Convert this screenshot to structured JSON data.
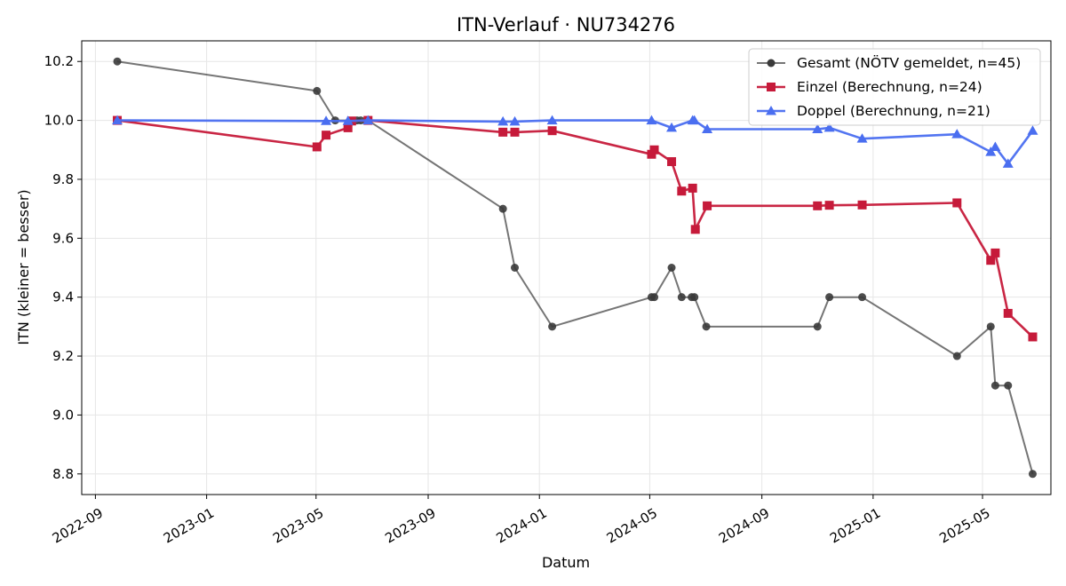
{
  "chart_data": {
    "type": "line",
    "title": "ITN-Verlauf · NU734276",
    "xlabel": "Datum",
    "ylabel": "ITN  (kleiner = besser)",
    "x_ticks": [
      "2022-09",
      "2023-01",
      "2023-05",
      "2023-09",
      "2024-01",
      "2024-05",
      "2024-09",
      "2025-01",
      "2025-05"
    ],
    "y_ticks": [
      8.8,
      9.0,
      9.2,
      9.4,
      9.6,
      9.8,
      10.0,
      10.2
    ],
    "xlim": [
      "2022-08-17",
      "2025-07-15"
    ],
    "ylim": [
      8.73,
      10.27
    ],
    "grid": true,
    "legend_position": "top-right",
    "series": [
      {
        "name": "Gesamt (NÖTV gemeldet, n=45)",
        "color": "#3a3a3a",
        "marker": "circle",
        "points": [
          [
            "2022-09-25",
            10.2
          ],
          [
            "2023-05-02",
            10.1
          ],
          [
            "2023-05-22",
            10.0
          ],
          [
            "2023-06-15",
            10.0
          ],
          [
            "2023-06-19",
            10.0
          ],
          [
            "2023-06-27",
            10.0
          ],
          [
            "2023-11-22",
            9.7
          ],
          [
            "2023-12-05",
            9.5
          ],
          [
            "2024-01-15",
            9.3
          ],
          [
            "2024-05-03",
            9.4
          ],
          [
            "2024-05-06",
            9.4
          ],
          [
            "2024-05-25",
            9.5
          ],
          [
            "2024-06-05",
            9.4
          ],
          [
            "2024-06-16",
            9.4
          ],
          [
            "2024-06-19",
            9.4
          ],
          [
            "2024-07-02",
            9.3
          ],
          [
            "2024-11-01",
            9.3
          ],
          [
            "2024-11-14",
            9.4
          ],
          [
            "2024-12-20",
            9.4
          ],
          [
            "2025-04-03",
            9.2
          ],
          [
            "2025-05-10",
            9.3
          ],
          [
            "2025-05-15",
            9.1
          ],
          [
            "2025-05-29",
            9.1
          ],
          [
            "2025-06-25",
            8.8
          ]
        ]
      },
      {
        "name": "Einzel (Berechnung, n=24)",
        "color": "#c61a3a",
        "marker": "square",
        "points": [
          [
            "2022-09-25",
            10.0
          ],
          [
            "2023-05-02",
            9.91
          ],
          [
            "2023-05-12",
            9.95
          ],
          [
            "2023-06-05",
            9.975
          ],
          [
            "2023-06-09",
            9.998
          ],
          [
            "2023-06-27",
            10.0
          ],
          [
            "2023-11-22",
            9.96
          ],
          [
            "2023-12-05",
            9.96
          ],
          [
            "2024-01-15",
            9.965
          ],
          [
            "2024-05-03",
            9.885
          ],
          [
            "2024-05-06",
            9.9
          ],
          [
            "2024-05-25",
            9.86
          ],
          [
            "2024-06-05",
            9.76
          ],
          [
            "2024-06-17",
            9.77
          ],
          [
            "2024-06-20",
            9.63
          ],
          [
            "2024-07-03",
            9.71
          ],
          [
            "2024-11-01",
            9.71
          ],
          [
            "2024-11-14",
            9.712
          ],
          [
            "2024-12-20",
            9.713
          ],
          [
            "2025-04-03",
            9.72
          ],
          [
            "2025-05-10",
            9.525
          ],
          [
            "2025-05-15",
            9.55
          ],
          [
            "2025-05-29",
            9.345
          ],
          [
            "2025-06-25",
            9.265
          ]
        ]
      },
      {
        "name": "Doppel (Berechnung, n=21)",
        "color": "#4a6ef0",
        "marker": "triangle",
        "points": [
          [
            "2022-09-25",
            10.0
          ],
          [
            "2023-05-12",
            9.998
          ],
          [
            "2023-06-05",
            9.998
          ],
          [
            "2023-06-27",
            10.0
          ],
          [
            "2023-11-22",
            9.996
          ],
          [
            "2023-12-05",
            9.996
          ],
          [
            "2024-01-15",
            10.0
          ],
          [
            "2024-05-03",
            10.0
          ],
          [
            "2024-05-25",
            9.975
          ],
          [
            "2024-06-17",
            10.0
          ],
          [
            "2024-06-19",
            10.0
          ],
          [
            "2024-07-03",
            9.97
          ],
          [
            "2024-11-01",
            9.97
          ],
          [
            "2024-11-14",
            9.975
          ],
          [
            "2024-12-20",
            9.938
          ],
          [
            "2025-04-03",
            9.953
          ],
          [
            "2025-05-10",
            9.893
          ],
          [
            "2025-05-15",
            9.91
          ],
          [
            "2025-05-29",
            9.853
          ],
          [
            "2025-06-25",
            9.965
          ]
        ]
      }
    ]
  }
}
